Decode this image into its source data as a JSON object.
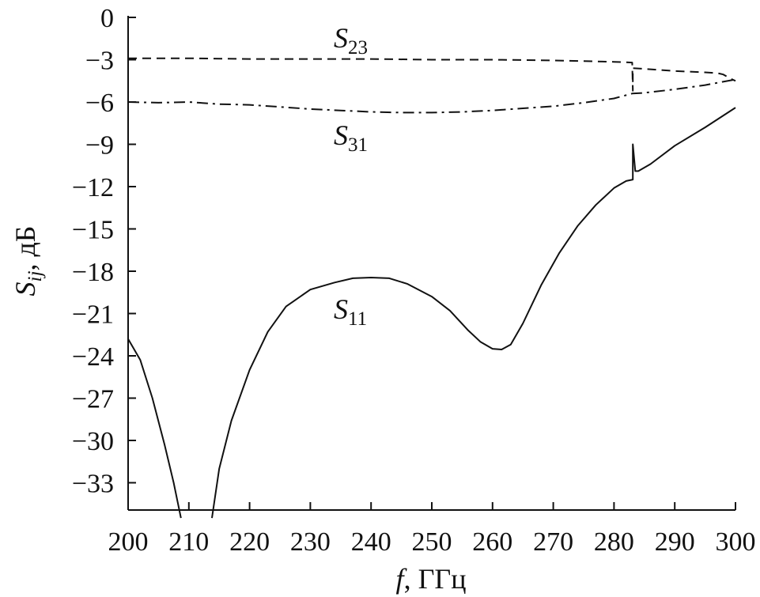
{
  "chart_data": {
    "type": "line",
    "xlabel": {
      "symbol": "f",
      "rest": ", ГГц"
    },
    "ylabel": {
      "symbol": "S",
      "sub": "ij",
      "rest": ", дБ"
    },
    "xlim": [
      200,
      300
    ],
    "ylim": [
      -35.5,
      0
    ],
    "x_ticks": [
      "200",
      "210",
      "220",
      "230",
      "240",
      "250",
      "260",
      "270",
      "280",
      "290",
      "300"
    ],
    "y_ticks": [
      "0",
      "−3",
      "−6",
      "−9",
      "−12",
      "−15",
      "−18",
      "−21",
      "−24",
      "−27",
      "−30",
      "−33"
    ],
    "grid": false,
    "series": [
      {
        "name": "S23",
        "label_symbol": "S",
        "label_sub": "23",
        "line_style": "dashed",
        "x": [
          200,
          210,
          220,
          230,
          240,
          250,
          260,
          270,
          280,
          283,
          283.1,
          283.1,
          285,
          290,
          295,
          297,
          298,
          299,
          300
        ],
        "y": [
          -2.9,
          -2.9,
          -2.95,
          -2.95,
          -2.95,
          -3.0,
          -3.0,
          -3.05,
          -3.15,
          -3.2,
          -5.2,
          -3.6,
          -3.65,
          -3.8,
          -3.9,
          -3.95,
          -4.05,
          -4.3,
          -4.5
        ]
      },
      {
        "name": "S31",
        "label_symbol": "S",
        "label_sub": "31",
        "line_style": "dashdot",
        "x": [
          200,
          205,
          210,
          215,
          220,
          225,
          230,
          235,
          240,
          245,
          250,
          255,
          260,
          265,
          270,
          275,
          280,
          283,
          285,
          290,
          295,
          300
        ],
        "y": [
          -6.0,
          -6.05,
          -6.0,
          -6.15,
          -6.2,
          -6.35,
          -6.5,
          -6.6,
          -6.7,
          -6.75,
          -6.75,
          -6.7,
          -6.6,
          -6.45,
          -6.3,
          -6.05,
          -5.75,
          -5.4,
          -5.35,
          -5.1,
          -4.8,
          -4.4
        ]
      },
      {
        "name": "S11",
        "label_symbol": "S",
        "label_sub": "11",
        "line_style": "solid",
        "segments": [
          {
            "x": [
              200,
              202,
              204,
              206,
              207.5,
              208.7
            ],
            "y": [
              -22.8,
              -24.3,
              -27.0,
              -30.3,
              -33.0,
              -35.5
            ]
          },
          {
            "x": [
              213.8,
              215,
              217,
              220,
              223,
              226,
              230,
              234,
              237,
              240,
              243,
              246,
              250,
              253,
              256,
              258,
              260,
              261.5,
              263,
              265,
              268,
              271,
              274,
              277,
              280,
              282,
              283.1,
              283.1,
              283.5,
              284,
              286,
              290,
              295,
              300
            ],
            "y": [
              -35.5,
              -32.0,
              -28.6,
              -25.0,
              -22.3,
              -20.5,
              -19.3,
              -18.8,
              -18.5,
              -18.45,
              -18.5,
              -18.9,
              -19.8,
              -20.8,
              -22.2,
              -23.0,
              -23.5,
              -23.55,
              -23.2,
              -21.7,
              -19.0,
              -16.7,
              -14.8,
              -13.3,
              -12.1,
              -11.6,
              -11.5,
              -9.0,
              -10.9,
              -10.9,
              -10.4,
              -9.1,
              -7.8,
              -6.4
            ]
          }
        ]
      }
    ]
  }
}
